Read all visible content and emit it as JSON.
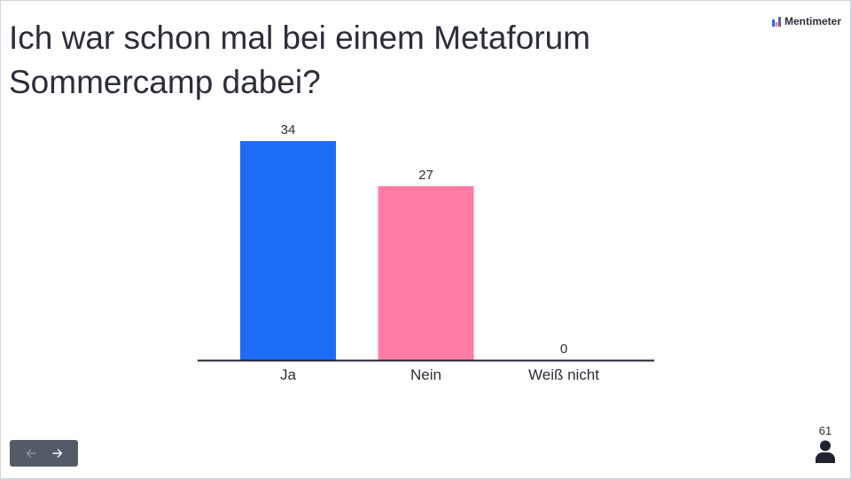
{
  "question": {
    "title_line1": "Ich war schon mal bei einem Metaforum",
    "title_line2": "Sommercamp dabei?"
  },
  "brand": {
    "name": "Mentimeter",
    "icon": "mentimeter-logo"
  },
  "navigation": {
    "prev_icon": "arrow-left-icon",
    "next_icon": "arrow-right-icon"
  },
  "participants": {
    "count": "61",
    "icon": "person-icon"
  },
  "colors": {
    "ja": "#1d6cf5",
    "nein": "#ff7ca5",
    "weiss_nicht": "#6f7d92",
    "text": "#2b2e39"
  },
  "chart_data": {
    "type": "bar",
    "categories": [
      "Ja",
      "Nein",
      "Weiß nicht"
    ],
    "values": [
      34,
      27,
      0
    ],
    "colors": [
      "#1d6cf5",
      "#ff7ca5",
      "#6f7d92"
    ],
    "data_labels": [
      "34",
      "27",
      "0"
    ],
    "title": "",
    "xlabel": "",
    "ylabel": "",
    "ylim": [
      0,
      34
    ],
    "grid": false,
    "legend": "none"
  }
}
